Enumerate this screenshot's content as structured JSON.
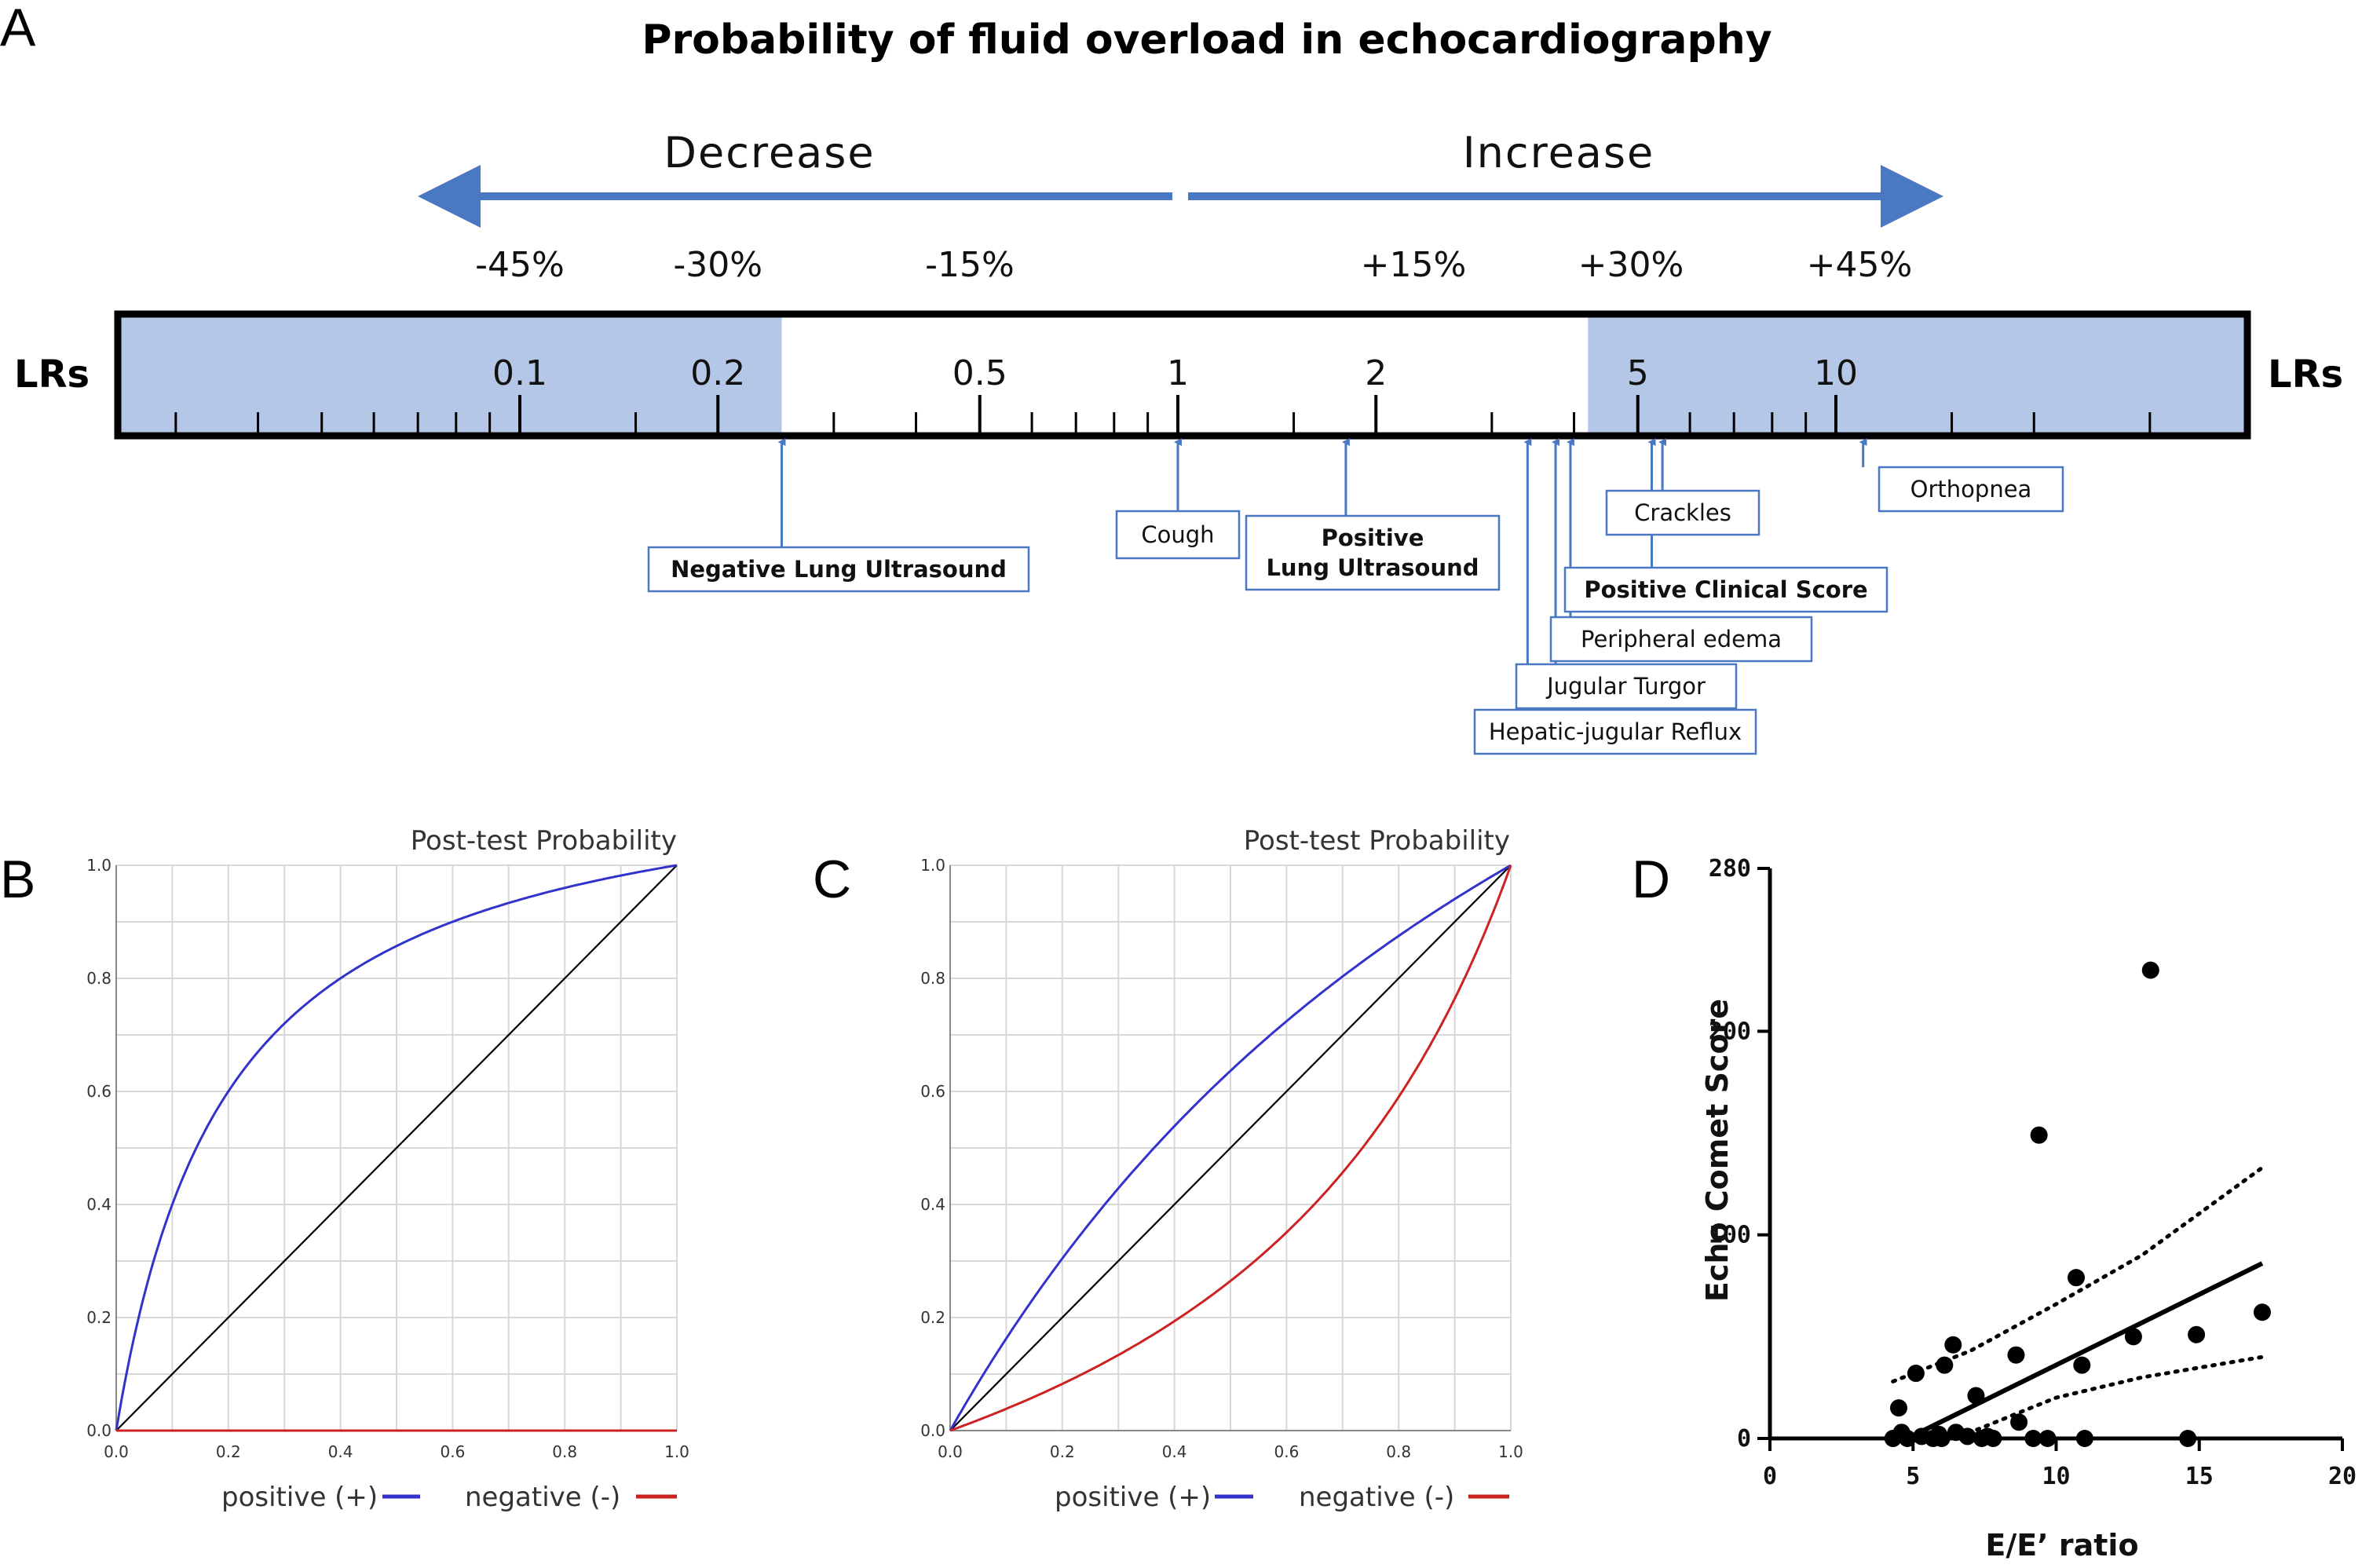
{
  "panel_labels": [
    "A",
    "B",
    "C",
    "D"
  ],
  "chart_data": [
    {
      "type": "scale",
      "panel": "A",
      "title": "Probability of fluid overload in echocardiography",
      "direction_labels": {
        "left": "Decrease",
        "right": "Increase"
      },
      "axis_label": "LRs",
      "shaded_low_max": 0.25,
      "shaded_high_min": 4.2,
      "lr_ticks": [
        {
          "value": 0.1,
          "label": "0.1"
        },
        {
          "value": 0.2,
          "label": "0.2"
        },
        {
          "value": 0.5,
          "label": "0.5"
        },
        {
          "value": 1,
          "label": "1"
        },
        {
          "value": 2,
          "label": "2"
        },
        {
          "value": 5,
          "label": "5"
        },
        {
          "value": 10,
          "label": "10"
        }
      ],
      "percent_labels": [
        {
          "value": 0.1,
          "label": "-45%"
        },
        {
          "value": 0.2,
          "label": "-30%"
        },
        {
          "value": 0.4,
          "label": "-15%"
        },
        {
          "value": 2,
          "label": "+15%"
        },
        {
          "value": 5,
          "label": "+30%"
        },
        {
          "value": 10,
          "label": "+45%"
        }
      ],
      "findings": [
        {
          "label": "Negative Lung Ultrasound",
          "lr": 0.25,
          "bold": true
        },
        {
          "label": "Cough",
          "lr": 1.0,
          "bold": false
        },
        {
          "label": "Positive\nLung Ultrasound",
          "lr": 1.8,
          "bold": true
        },
        {
          "label": "Hepatic-jugular Reflux",
          "lr": 3.4,
          "bold": false
        },
        {
          "label": "Jugular Turgor",
          "lr": 3.75,
          "bold": false
        },
        {
          "label": "Peripheral edema",
          "lr": 3.95,
          "bold": false
        },
        {
          "label": "Positive Clinical Score",
          "lr": 5.25,
          "bold": true
        },
        {
          "label": "Crackles",
          "lr": 5.45,
          "bold": false
        },
        {
          "label": "Orthopnea",
          "lr": 11.0,
          "bold": false
        }
      ]
    },
    {
      "type": "line",
      "panel": "B",
      "title": "Post-test Probability",
      "xlim": [
        0,
        1
      ],
      "ylim": [
        0,
        1
      ],
      "x_ticks": [
        "0.0",
        "0.2",
        "0.4",
        "0.6",
        "0.8",
        "1.0"
      ],
      "y_ticks": [
        "0.0",
        "0.2",
        "0.4",
        "0.6",
        "0.8",
        "1.0"
      ],
      "series": [
        {
          "name": "positive (+)",
          "color": "#3333cc",
          "likelihood_ratio": 6.0
        },
        {
          "name": "negative (-)",
          "color": "#cc2222",
          "likelihood_ratio": 0.0
        }
      ]
    },
    {
      "type": "line",
      "panel": "C",
      "title": "Post-test Probability",
      "xlim": [
        0,
        1
      ],
      "ylim": [
        0,
        1
      ],
      "x_ticks": [
        "0.0",
        "0.2",
        "0.4",
        "0.6",
        "0.8",
        "1.0"
      ],
      "y_ticks": [
        "0.0",
        "0.2",
        "0.4",
        "0.6",
        "0.8",
        "1.0"
      ],
      "series": [
        {
          "name": "positive (+)",
          "color": "#3333cc",
          "likelihood_ratio": 1.75
        },
        {
          "name": "negative (-)",
          "color": "#cc2222",
          "likelihood_ratio": 0.36
        }
      ]
    },
    {
      "type": "scatter",
      "panel": "D",
      "xlabel": "E/E’ ratio",
      "ylabel": "Echo Comet Score",
      "xlim": [
        0,
        20
      ],
      "ylim": [
        0,
        280
      ],
      "x_ticks": [
        0,
        5,
        10,
        15,
        20
      ],
      "y_ticks": [
        0,
        100,
        200,
        280
      ],
      "points": [
        [
          4.3,
          0
        ],
        [
          4.5,
          15
        ],
        [
          4.6,
          3
        ],
        [
          4.8,
          0
        ],
        [
          5.1,
          32
        ],
        [
          5.3,
          1
        ],
        [
          5.7,
          0
        ],
        [
          5.9,
          2
        ],
        [
          6.0,
          0
        ],
        [
          6.1,
          36
        ],
        [
          6.4,
          46
        ],
        [
          6.5,
          3
        ],
        [
          6.9,
          1
        ],
        [
          7.2,
          21
        ],
        [
          7.4,
          0
        ],
        [
          7.6,
          1
        ],
        [
          7.8,
          0
        ],
        [
          8.6,
          41
        ],
        [
          8.7,
          8
        ],
        [
          9.2,
          0
        ],
        [
          9.4,
          149
        ],
        [
          9.7,
          0
        ],
        [
          10.7,
          79
        ],
        [
          10.9,
          36
        ],
        [
          11.0,
          0
        ],
        [
          12.7,
          50
        ],
        [
          13.3,
          230
        ],
        [
          14.6,
          0
        ],
        [
          14.9,
          51
        ],
        [
          17.2,
          62
        ]
      ],
      "regression": {
        "x": [
          4.8,
          17.2
        ],
        "y": [
          0,
          86
        ]
      },
      "ci_upper": {
        "x": [
          4.3,
          7,
          10,
          13,
          17.2
        ],
        "y": [
          28,
          43,
          66,
          90,
          133
        ]
      },
      "ci_lower": {
        "x": [
          4.3,
          7,
          10,
          13,
          17.2
        ],
        "y": [
          0,
          3,
          20,
          30,
          40
        ]
      }
    }
  ]
}
